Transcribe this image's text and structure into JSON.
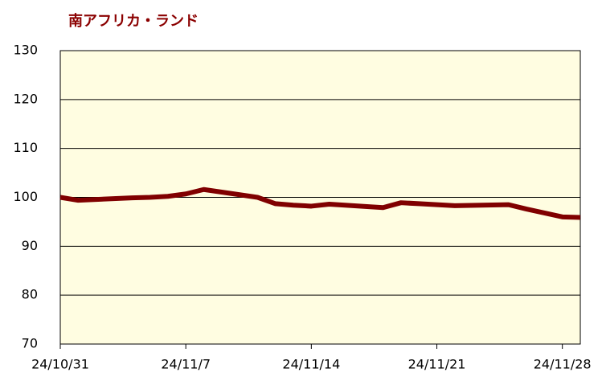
{
  "chart_data": {
    "type": "line",
    "title": "南アフリカ・ランド",
    "x": [
      "2024-10-31",
      "2024-11-01",
      "2024-11-04",
      "2024-11-05",
      "2024-11-06",
      "2024-11-07",
      "2024-11-08",
      "2024-11-11",
      "2024-11-12",
      "2024-11-13",
      "2024-11-14",
      "2024-11-15",
      "2024-11-18",
      "2024-11-19",
      "2024-11-20",
      "2024-11-21",
      "2024-11-22",
      "2024-11-25",
      "2024-11-26",
      "2024-11-27",
      "2024-11-28",
      "2024-11-29"
    ],
    "series": [
      {
        "name": "南アフリカ・ランド",
        "color": "#800000",
        "values": [
          100,
          99.4,
          99.9,
          100.0,
          100.2,
          100.7,
          101.6,
          100.0,
          98.7,
          98.4,
          98.2,
          98.6,
          97.9,
          98.9,
          98.7,
          98.5,
          98.3,
          98.5,
          97.6,
          96.8,
          96.0,
          95.9
        ]
      }
    ],
    "xlim": [
      "2024-10-31",
      "2024-11-29"
    ],
    "xticks": [
      {
        "value": "2024-10-31",
        "label": "24/10/31"
      },
      {
        "value": "2024-11-07",
        "label": "24/11/7"
      },
      {
        "value": "2024-11-14",
        "label": "24/11/14"
      },
      {
        "value": "2024-11-21",
        "label": "24/11/21"
      },
      {
        "value": "2024-11-28",
        "label": "24/11/28"
      }
    ],
    "ylim": [
      70,
      130
    ],
    "yticks": [
      70,
      80,
      90,
      100,
      110,
      120,
      130
    ],
    "grid": true,
    "background": "#fffde1"
  }
}
